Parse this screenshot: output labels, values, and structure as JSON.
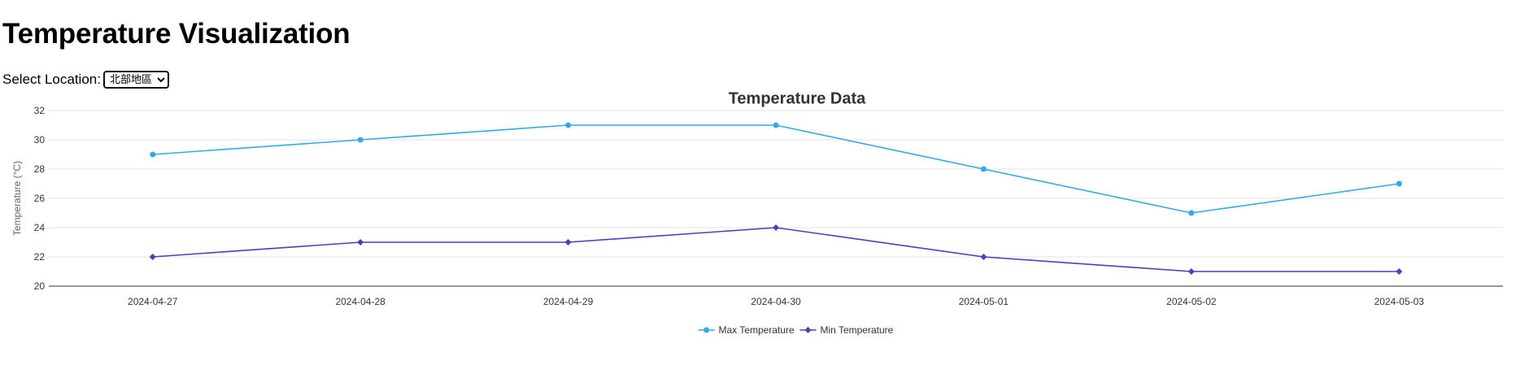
{
  "page": {
    "title": "Temperature Visualization"
  },
  "location": {
    "label": "Select Location:",
    "selected": "北部地區",
    "options": [
      "北部地區"
    ]
  },
  "colors": {
    "max_series": "#2eaaef",
    "min_series": "#4b3fbf",
    "grid": "#e6e6e6",
    "axis": "#333333"
  },
  "chart_data": {
    "type": "line",
    "title": "Temperature Data",
    "xlabel": "",
    "ylabel": "Temperature (°C)",
    "categories": [
      "2024-04-27",
      "2024-04-28",
      "2024-04-29",
      "2024-04-30",
      "2024-05-01",
      "2024-05-02",
      "2024-05-03"
    ],
    "ylim": [
      20,
      32
    ],
    "yticks": [
      20,
      22,
      24,
      26,
      28,
      30,
      32
    ],
    "grid": true,
    "legend": "bottom-center",
    "series": [
      {
        "name": "Max Temperature",
        "values": [
          29,
          30,
          31,
          31,
          28,
          25,
          27
        ],
        "color": "#2eaaef",
        "marker": "circle"
      },
      {
        "name": "Min Temperature",
        "values": [
          22,
          23,
          23,
          24,
          22,
          21,
          21
        ],
        "color": "#4b3fbf",
        "marker": "diamond"
      }
    ]
  }
}
